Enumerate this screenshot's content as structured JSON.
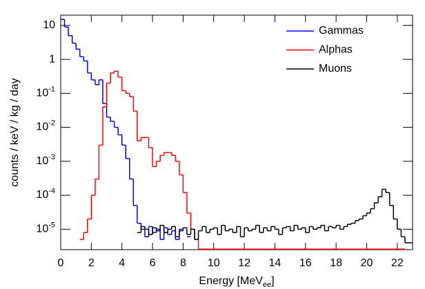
{
  "chart_data": {
    "type": "histogram",
    "x_label": {
      "text": "Energy [MeV",
      "subscript": "ee",
      "suffix": "]"
    },
    "y_label": "counts / keV / kg / day",
    "log_y": true,
    "legend": "top-right",
    "xlim": [
      0,
      23
    ],
    "ylim": [
      2.5e-06,
      20
    ],
    "xticks": [
      0,
      2,
      4,
      6,
      8,
      10,
      12,
      14,
      16,
      18,
      20,
      22
    ],
    "yticks": [
      10,
      1,
      {
        "value": 0.1,
        "label": "10",
        "exponent": "-1"
      },
      {
        "value": 0.01,
        "label": "10",
        "exponent": "-2"
      },
      {
        "value": 0.001,
        "label": "10",
        "exponent": "-3"
      },
      {
        "value": 0.0001,
        "label": "10",
        "exponent": "-4"
      },
      {
        "value": 1e-05,
        "label": "10",
        "exponent": "-5"
      }
    ],
    "bins": [
      0,
      0.25,
      0.5,
      0.75,
      1,
      1.25,
      1.5,
      1.75,
      2,
      2.25,
      2.5,
      2.75,
      3,
      3.25,
      3.5,
      3.75,
      4,
      4.25,
      4.5,
      4.75,
      5,
      5.25,
      5.5,
      5.75,
      6,
      6.25,
      6.5,
      6.75,
      7,
      7.25,
      7.5,
      7.75,
      8,
      8.25,
      8.5,
      8.75,
      9,
      9.25,
      9.5,
      9.75,
      10,
      10.25,
      10.5,
      10.75,
      11,
      11.25,
      11.5,
      11.75,
      12,
      12.25,
      12.5,
      12.75,
      13,
      13.25,
      13.5,
      13.75,
      14,
      14.25,
      14.5,
      14.75,
      15,
      15.25,
      15.5,
      15.75,
      16,
      16.25,
      16.5,
      16.75,
      17,
      17.25,
      17.5,
      17.75,
      18,
      18.25,
      18.5,
      18.75,
      19,
      19.25,
      19.5,
      19.75,
      20,
      20.25,
      20.5,
      20.75,
      21,
      21.25,
      21.5,
      21.75,
      22,
      22.25,
      22.5,
      22.75,
      23
    ],
    "series": [
      {
        "name": "Gammas",
        "color": "#0000ff",
        "values": [
          15,
          9,
          5,
          3,
          2,
          1.2,
          0.9,
          0.4,
          0.25,
          0.18,
          0.25,
          0.05,
          0.02,
          0.015,
          0.01,
          0.006,
          0.003,
          0.0012,
          0.0003,
          5e-05,
          1.5e-05,
          1e-05,
          6e-06,
          1.2e-05,
          8e-06,
          1e-05,
          5e-06,
          1.1e-05,
          7e-06,
          9e-06,
          5e-06,
          1e-05,
          null,
          6e-06,
          null,
          null,
          null,
          null,
          null,
          null,
          null,
          null,
          null,
          null,
          null,
          null,
          null,
          null,
          null,
          null,
          null,
          null,
          null,
          null,
          null,
          null,
          null,
          null,
          null,
          null,
          null,
          null,
          null,
          null,
          null,
          null,
          null,
          null,
          null,
          null,
          null,
          null,
          null,
          null,
          null,
          null,
          null,
          null,
          null,
          null,
          null,
          null,
          null,
          null,
          null,
          null,
          null,
          null,
          null,
          null,
          null,
          null
        ]
      },
      {
        "name": "Alphas",
        "color": "#ff0000",
        "values": [
          null,
          null,
          null,
          null,
          null,
          5e-06,
          8e-06,
          2e-05,
          0.0001,
          0.0003,
          0.003,
          0.04,
          0.2,
          0.4,
          0.45,
          0.3,
          0.12,
          0.1,
          0.08,
          0.03,
          0.004,
          0.005,
          0.005,
          0.0025,
          0.0007,
          0.001,
          0.0015,
          0.0018,
          0.0018,
          0.0015,
          0.001,
          0.0004,
          0.00012,
          3e-05,
          1e-05,
          5e-06,
          2.6e-06,
          2.6e-06,
          2.6e-06,
          2.6e-06,
          2.6e-06,
          2.6e-06,
          2.6e-06,
          2.6e-06,
          2.6e-06,
          2.6e-06,
          2.6e-06,
          2.6e-06,
          2.6e-06,
          2.6e-06,
          2.6e-06,
          2.6e-06,
          2.6e-06,
          2.6e-06,
          2.6e-06,
          2.6e-06,
          2.6e-06,
          2.6e-06,
          2.6e-06,
          2.6e-06,
          2.6e-06,
          2.6e-06,
          2.6e-06,
          2.6e-06,
          2.6e-06,
          2.6e-06,
          2.6e-06,
          2.6e-06,
          2.6e-06,
          2.6e-06,
          2.6e-06,
          2.6e-06,
          2.6e-06,
          2.6e-06,
          2.6e-06,
          2.6e-06,
          2.6e-06,
          2.6e-06,
          2.6e-06,
          2.6e-06,
          2.6e-06,
          2.6e-06,
          2.6e-06,
          2.6e-06,
          2.6e-06,
          2.6e-06,
          2.6e-06,
          2.6e-06,
          2.6e-06,
          2.6e-06,
          null,
          null
        ]
      },
      {
        "name": "Muons",
        "color": "#000000",
        "values": [
          null,
          null,
          null,
          null,
          null,
          null,
          null,
          null,
          null,
          null,
          null,
          null,
          null,
          null,
          null,
          null,
          null,
          null,
          null,
          null,
          8e-06,
          1.2e-05,
          1e-05,
          7e-06,
          1.1e-05,
          9e-06,
          1.3e-05,
          8e-06,
          1e-05,
          1.2e-05,
          6e-06,
          9e-06,
          1.1e-05,
          7e-06,
          1e-05,
          5e-06,
          9e-06,
          1.2e-05,
          8e-06,
          1e-05,
          1.1e-05,
          7e-06,
          1.3e-05,
          9e-06,
          1e-05,
          8e-06,
          1.2e-05,
          6e-06,
          1.1e-05,
          9e-06,
          1e-05,
          1.3e-05,
          8e-06,
          1.1e-05,
          9e-06,
          1.2e-05,
          1e-05,
          7e-06,
          1.1e-05,
          1.2e-05,
          9e-06,
          1.3e-05,
          1e-05,
          1.1e-05,
          8e-06,
          1.2e-05,
          1e-05,
          1.1e-05,
          1.3e-05,
          9e-06,
          1.2e-05,
          1.1e-05,
          1.3e-05,
          1e-05,
          1.2e-05,
          1.4e-05,
          1.5e-05,
          1.8e-05,
          2e-05,
          2.5e-05,
          3e-05,
          4e-05,
          6e-05,
          9e-05,
          0.00015,
          0.00012,
          5e-05,
          2e-05,
          1e-05,
          6e-06,
          4e-06,
          4e-06
        ]
      }
    ]
  }
}
